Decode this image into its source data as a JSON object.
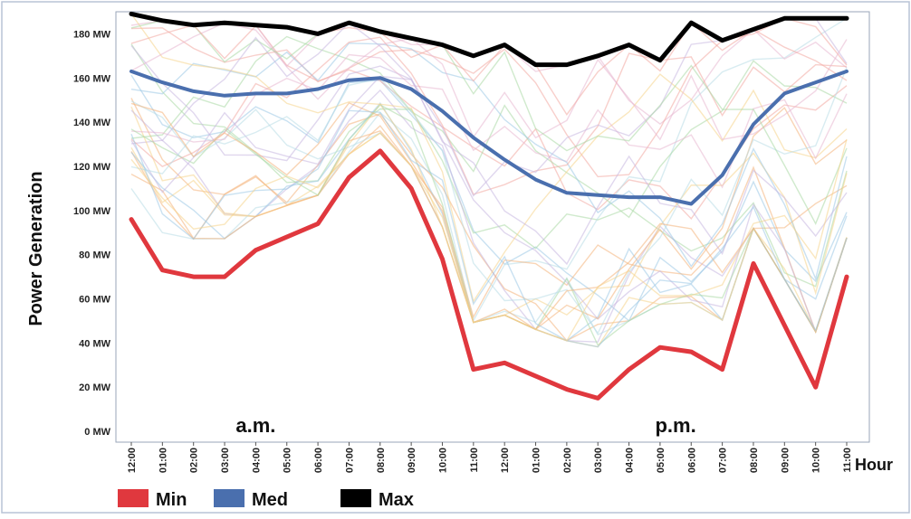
{
  "chart_data": {
    "type": "line",
    "ylabel": "Power Generation",
    "xlabel": "Hour",
    "ylim": [
      0,
      190
    ],
    "y_ticks": [
      "0 MW",
      "20 MW",
      "40 MW",
      "60 MW",
      "80 MW",
      "100 MW",
      "120 MW",
      "140 MW",
      "160 MW",
      "180 MW"
    ],
    "y_tick_values": [
      0,
      20,
      40,
      60,
      80,
      100,
      120,
      140,
      160,
      180
    ],
    "categories": [
      "12:00",
      "01:00",
      "02:00",
      "03:00",
      "04:00",
      "05:00",
      "06:00",
      "07:00",
      "08:00",
      "09:00",
      "10:00",
      "11:00",
      "12:00",
      "01:00",
      "02:00",
      "03:00",
      "04:00",
      "05:00",
      "06:00",
      "07:00",
      "08:00",
      "09:00",
      "10:00",
      "11:00"
    ],
    "period_labels": [
      {
        "text": "a.m.",
        "at_index": 4
      },
      {
        "text": "p.m.",
        "at_index": 17.5
      }
    ],
    "series": [
      {
        "name": "Min",
        "color": "#e0383e",
        "values": [
          96,
          73,
          70,
          70,
          82,
          88,
          94,
          115,
          127,
          110,
          78,
          28,
          31,
          25,
          19,
          15,
          28,
          38,
          36,
          28,
          76,
          48,
          20,
          70
        ]
      },
      {
        "name": "Med",
        "color": "#4a6fae",
        "values": [
          163,
          158,
          154,
          152,
          153,
          153,
          155,
          159,
          160,
          155,
          145,
          133,
          123,
          114,
          108,
          107,
          106,
          106,
          103,
          116,
          139,
          153,
          158,
          163
        ]
      },
      {
        "name": "Max",
        "color": "#000000",
        "values": [
          189,
          186,
          184,
          185,
          184,
          183,
          180,
          185,
          181,
          178,
          175,
          170,
          175,
          166,
          166,
          170,
          175,
          168,
          185,
          177,
          182,
          187,
          187,
          187
        ]
      }
    ],
    "legend": {
      "placement": "bottom-left",
      "entries": [
        "Min",
        "Med",
        "Max"
      ]
    },
    "grid": false,
    "background_series_colors": [
      "#f4b27a",
      "#9dc9e6",
      "#a9d8a4",
      "#f2a7a0",
      "#c6b7e0",
      "#f6d38a",
      "#b8dce6",
      "#e8b7cf"
    ]
  }
}
